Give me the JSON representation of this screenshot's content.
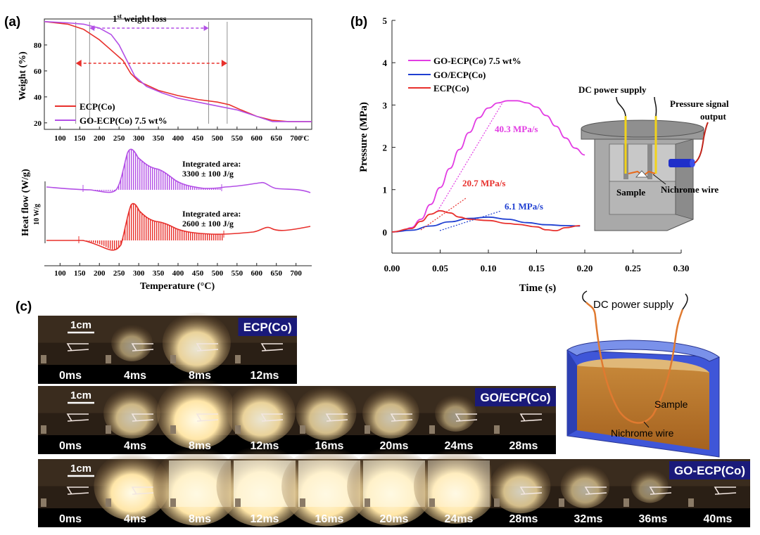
{
  "colors": {
    "purple": "#b34fe6",
    "red": "#e8302c",
    "blue": "#1f3fd1",
    "magenta": "#e23ce3",
    "navy_badge": "#1a1a7a"
  },
  "panel_a": {
    "label": "(a)",
    "top": {
      "ylabel": "Weight (%)",
      "yticks": [
        20,
        40,
        60,
        80
      ],
      "xticks": [
        100,
        150,
        200,
        250,
        300,
        350,
        400,
        450,
        500,
        550,
        600,
        650,
        700
      ],
      "x_unit": "°C",
      "xlim": [
        60,
        740
      ],
      "ylim": [
        15,
        100
      ],
      "weight_loss_label": "1",
      "weight_loss_sup": "st",
      "weight_loss_rest": " weight loss",
      "legend": [
        "ECP(Co)",
        "GO-ECP(Co) 7.5 wt%"
      ],
      "series": [
        {
          "name": "ECP(Co)",
          "x": [
            60,
            120,
            160,
            200,
            230,
            260,
            280,
            300,
            350,
            400,
            450,
            500,
            530,
            560,
            600,
            640,
            680,
            740
          ],
          "y": [
            98,
            96,
            92,
            84,
            76,
            68,
            58,
            52,
            45,
            41,
            38,
            36,
            34,
            30,
            25,
            22,
            21,
            21
          ]
        },
        {
          "name": "GO-ECP(Co) 7.5 wt%",
          "x": [
            60,
            120,
            160,
            200,
            230,
            250,
            270,
            290,
            320,
            360,
            400,
            450,
            500,
            550,
            600,
            640,
            680,
            740
          ],
          "y": [
            98,
            97,
            96,
            93,
            88,
            80,
            68,
            56,
            48,
            43,
            39,
            36,
            33,
            30,
            25,
            21,
            21,
            21
          ]
        }
      ],
      "purple_range": [
        175,
        478
      ],
      "red_range": [
        140,
        525
      ]
    },
    "bottom": {
      "ylabel": "Heat flow (W/g)",
      "scale_label": "10 W/g",
      "xlabel": "Temperature (°C)",
      "xticks": [
        100,
        150,
        200,
        250,
        300,
        350,
        400,
        450,
        500,
        550,
        600,
        650,
        700
      ],
      "annot_purple_1": "Integrated area:",
      "annot_purple_2": "3300 ± 100 J/g",
      "annot_red_1": "Integrated area:",
      "annot_red_2": "2600 ± 100 J/g"
    }
  },
  "panel_b": {
    "label": "(b)",
    "chart_data": {
      "type": "line",
      "xlabel": "Time (s)",
      "ylabel": "Pressure (MPa)",
      "xlim": [
        0,
        0.3
      ],
      "ylim": [
        -0.5,
        5
      ],
      "xticks": [
        "0.00",
        "0.05",
        "0.10",
        "0.15",
        "0.20",
        "0.25",
        "0.30"
      ],
      "yticks": [
        "0",
        "1",
        "2",
        "3",
        "4",
        "5"
      ],
      "series": [
        {
          "name": "GO-ECP(Co) 7.5 wt%",
          "x": [
            0,
            0.01,
            0.02,
            0.03,
            0.04,
            0.05,
            0.06,
            0.07,
            0.08,
            0.09,
            0.1,
            0.11,
            0.12,
            0.13,
            0.14,
            0.15,
            0.16,
            0.17,
            0.18,
            0.19,
            0.2
          ],
          "y": [
            0,
            0.02,
            0.1,
            0.3,
            0.65,
            1.05,
            1.5,
            1.95,
            2.35,
            2.7,
            2.93,
            3.05,
            3.1,
            3.1,
            3.05,
            2.95,
            2.75,
            2.5,
            2.22,
            1.98,
            1.82
          ]
        },
        {
          "name": "GO/ECP(Co)",
          "x": [
            0,
            0.02,
            0.04,
            0.06,
            0.08,
            0.1,
            0.12,
            0.14,
            0.16,
            0.18,
            0.195
          ],
          "y": [
            0,
            0.04,
            0.14,
            0.24,
            0.32,
            0.35,
            0.3,
            0.22,
            0.17,
            0.15,
            0.14
          ]
        },
        {
          "name": "ECP(Co)",
          "x": [
            0,
            0.02,
            0.03,
            0.04,
            0.05,
            0.06,
            0.07,
            0.08,
            0.1,
            0.12,
            0.13,
            0.15,
            0.16,
            0.17,
            0.18,
            0.195
          ],
          "y": [
            0,
            0.08,
            0.25,
            0.42,
            0.5,
            0.45,
            0.35,
            0.3,
            0.27,
            0.2,
            0.18,
            0.12,
            0.05,
            0.03,
            0.1,
            0.15
          ]
        }
      ],
      "rates": [
        "40.3 MPa/s",
        "20.7 MPa/s",
        "6.1 MPa/s"
      ]
    },
    "inset": {
      "dc_label": "DC power supply",
      "pressure_label_1": "Pressure signal",
      "pressure_label_2": "output",
      "sample_label": "Sample",
      "wire_label": "Nichrome wire"
    }
  },
  "panel_c": {
    "label": "(c)",
    "scale_label": "1cm",
    "rows": [
      {
        "badge": "ECP(Co)",
        "frames": [
          "0ms",
          "4ms",
          "8ms",
          "12ms"
        ],
        "brightness": [
          0.05,
          0.35,
          0.7,
          0.12
        ]
      },
      {
        "badge": "GO/ECP(Co)",
        "frames": [
          "0ms",
          "4ms",
          "8ms",
          "12ms",
          "16ms",
          "20ms",
          "24ms",
          "28ms"
        ],
        "brightness": [
          0.05,
          0.55,
          0.85,
          0.7,
          0.6,
          0.55,
          0.35,
          0.08
        ]
      },
      {
        "badge": "GO-ECP(Co)",
        "frames": [
          "0ms",
          "4ms",
          "8ms",
          "12ms",
          "16ms",
          "20ms",
          "24ms",
          "28ms",
          "32ms",
          "36ms",
          "40ms"
        ],
        "brightness": [
          0.05,
          0.8,
          0.95,
          0.98,
          0.97,
          0.95,
          0.9,
          0.6,
          0.45,
          0.3,
          0.08
        ]
      }
    ],
    "diagram": {
      "dc_label": "DC power supply",
      "sample_label": "Sample",
      "wire_label": "Nichrome wire"
    }
  }
}
